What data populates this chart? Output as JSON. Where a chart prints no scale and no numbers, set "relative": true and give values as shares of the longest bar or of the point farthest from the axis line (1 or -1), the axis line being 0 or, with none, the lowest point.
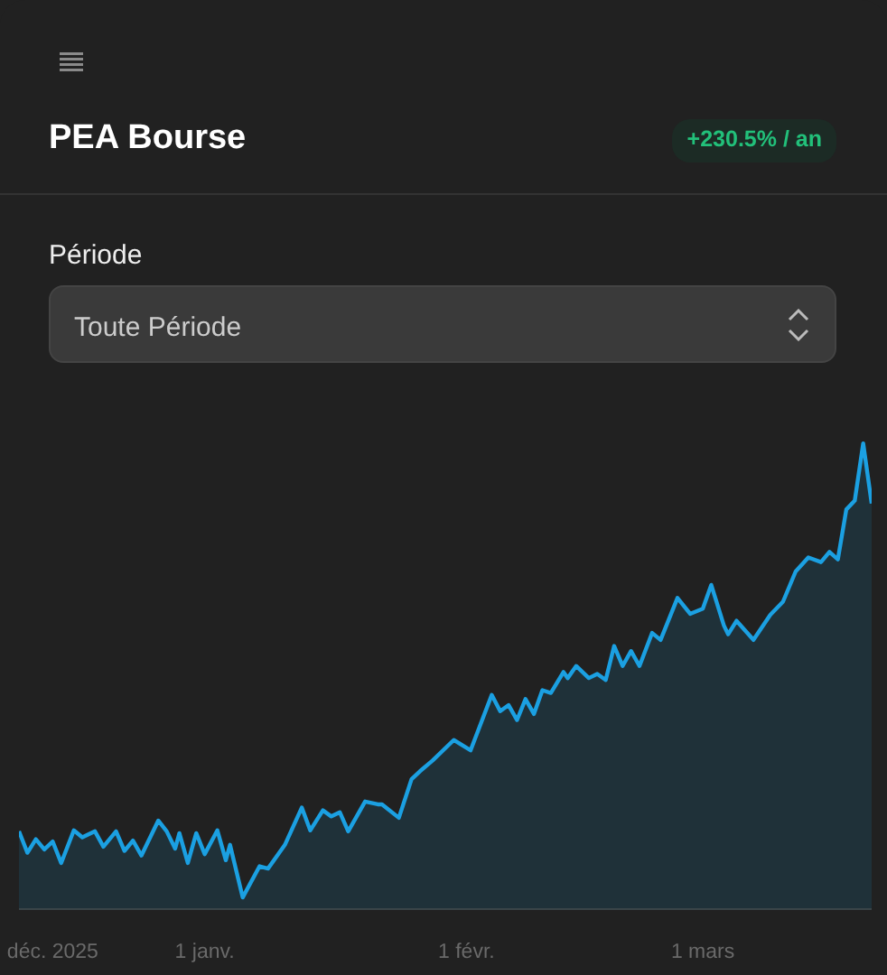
{
  "chart_data": {
    "type": "area",
    "title": "PEA Bourse",
    "relative": true,
    "color": "#1ba0e2",
    "grid": false,
    "marker": "none",
    "annotations": [
      "+230.5% / an",
      "Période",
      "Toute Période"
    ],
    "x": [
      "2025-12-10",
      "2025-12-11",
      "2025-12-12",
      "2025-12-13",
      "2025-12-14",
      "2025-12-15",
      "2025-12-16T12:00",
      "2025-12-17T12:00",
      "2025-12-19",
      "2025-12-20",
      "2025-12-21T12:00",
      "2025-12-22T12:00",
      "2025-12-23T12:00",
      "2025-12-24T12:00",
      "2025-12-26T12:00",
      "2025-12-27T12:00",
      "2025-12-28T12:00",
      "2025-12-29",
      "2025-12-30",
      "2025-12-31",
      "2026-01-01",
      "2026-01-02T12:00",
      "2026-01-03T12:00",
      "2026-01-04",
      "2026-01-05T12:00",
      "2026-01-07T12:00",
      "2026-01-08T12:00",
      "2026-01-10T12:00",
      "2026-01-12T12:00",
      "2026-01-13T12:00",
      "2026-01-15",
      "2026-01-16",
      "2026-01-17",
      "2026-01-18",
      "2026-01-20",
      "2026-01-21T12:00",
      "2026-01-22",
      "2026-01-24",
      "2026-01-25T12:00",
      "2026-01-26T12:00",
      "2026-01-28",
      "2026-01-30T12:00",
      "2026-02-01T12:00",
      "2026-02-04",
      "2026-02-05",
      "2026-02-06",
      "2026-02-07",
      "2026-02-08",
      "2026-02-09",
      "2026-02-10",
      "2026-02-11",
      "2026-02-12T12:00",
      "2026-02-13",
      "2026-02-14",
      "2026-02-15T12:00",
      "2026-02-16T12:00",
      "2026-02-17T12:00",
      "2026-02-18T12:00",
      "2026-02-19T12:00",
      "2026-02-20T12:00",
      "2026-02-21T12:00",
      "2026-02-23",
      "2026-02-24",
      "2026-02-26",
      "2026-02-27T12:00",
      "2026-03-01",
      "2026-03-02",
      "2026-03-03T12:00",
      "2026-03-04",
      "2026-03-05",
      "2026-03-07",
      "2026-03-09",
      "2026-03-10T12:00",
      "2026-03-12",
      "2026-03-13T12:00",
      "2026-03-15",
      "2026-03-16",
      "2026-03-17",
      "2026-03-18",
      "2026-03-19",
      "2026-03-20",
      "2026-03-21"
    ],
    "values": [
      0.167,
      0.121,
      0.15,
      0.128,
      0.145,
      0.099,
      0.169,
      0.154,
      0.167,
      0.134,
      0.167,
      0.125,
      0.147,
      0.115,
      0.19,
      0.167,
      0.13,
      0.163,
      0.099,
      0.163,
      0.118,
      0.169,
      0.105,
      0.138,
      0.025,
      0.092,
      0.087,
      0.138,
      0.218,
      0.169,
      0.212,
      0.199,
      0.208,
      0.167,
      0.231,
      0.225,
      0.225,
      0.196,
      0.279,
      0.296,
      0.319,
      0.363,
      0.341,
      0.46,
      0.425,
      0.438,
      0.406,
      0.451,
      0.419,
      0.47,
      0.464,
      0.509,
      0.496,
      0.522,
      0.496,
      0.505,
      0.492,
      0.565,
      0.522,
      0.554,
      0.522,
      0.593,
      0.578,
      0.668,
      0.634,
      0.645,
      0.696,
      0.609,
      0.59,
      0.619,
      0.578,
      0.632,
      0.66,
      0.725,
      0.755,
      0.745,
      0.767,
      0.751,
      0.858,
      0.877,
      1.0,
      0.871
    ],
    "xlim": [
      "2025-12-10",
      "2026-03-21"
    ],
    "xticks": [
      {
        "value": "2025-12-14",
        "label": "déc. 2025"
      },
      {
        "value": "2026-01-01",
        "label": "1 janv."
      },
      {
        "value": "2026-02-01",
        "label": "1 févr."
      },
      {
        "value": "2026-03-01",
        "label": "1 mars"
      }
    ]
  }
}
